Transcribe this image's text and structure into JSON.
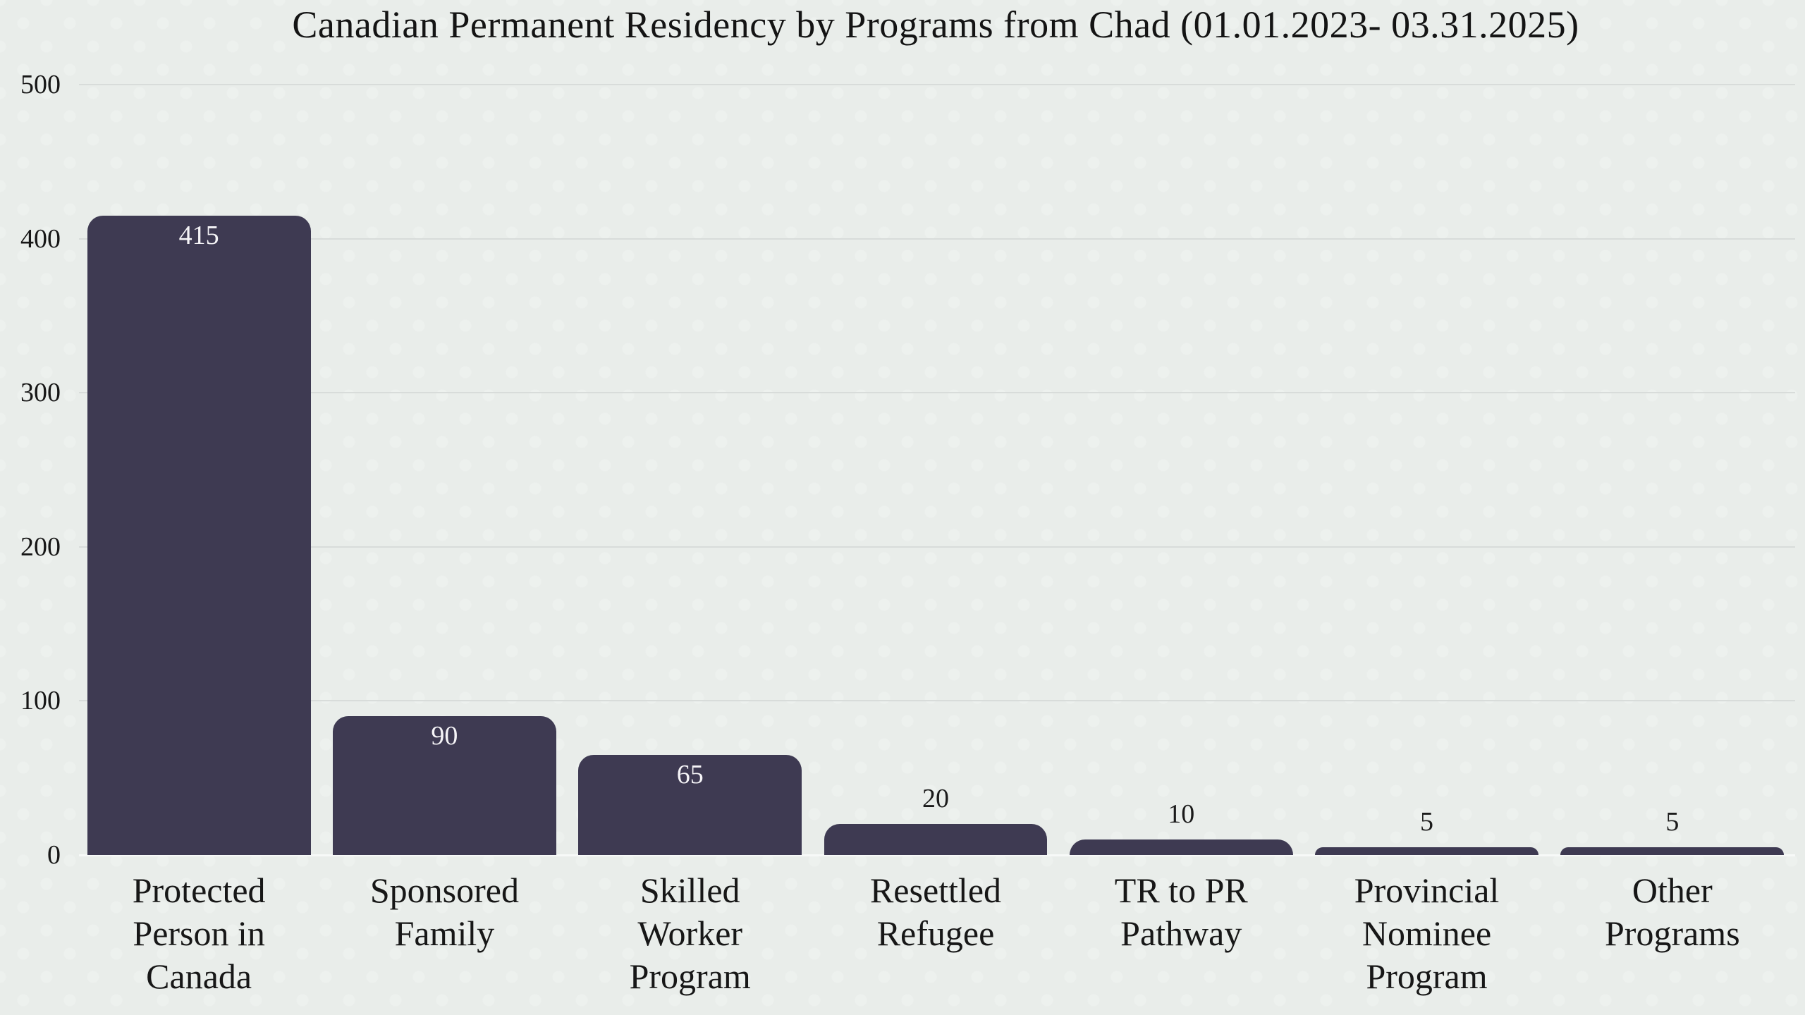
{
  "page": {
    "background_color": "#e9edea",
    "texture": "subtle-light-dots"
  },
  "chart_data": {
    "type": "bar",
    "title": "Canadian Permanent Residency by Programs from Chad (01.01.2023- 03.31.2025)",
    "categories": [
      "Protected Person in Canada",
      "Sponsored Family",
      "Skilled Worker Program",
      "Resettled Refugee",
      "TR to PR Pathway",
      "Provincial Nominee Program",
      "Other Programs"
    ],
    "category_lines": [
      "Protected\nPerson in\nCanada",
      "Sponsored\nFamily",
      "Skilled\nWorker\nProgram",
      "Resettled\nRefugee",
      "TR to PR\nPathway",
      "Provincial\nNominee\nProgram",
      "Other\nPrograms"
    ],
    "values": [
      415,
      90,
      65,
      20,
      10,
      5,
      5
    ],
    "xlabel": "",
    "ylabel": "",
    "ylim": [
      0,
      500
    ],
    "yticks": [
      0,
      100,
      200,
      300,
      400,
      500
    ],
    "grid": "horizontal",
    "legend_position": "none",
    "bar_color": "#3e3a52",
    "gridline_color": "#d8dcda",
    "baseline_color": "#f7f9f8",
    "value_label_inside_color": "#f5f4f7",
    "value_label_outside_color": "#1b1b1b",
    "axis_text_color": "#161616"
  }
}
